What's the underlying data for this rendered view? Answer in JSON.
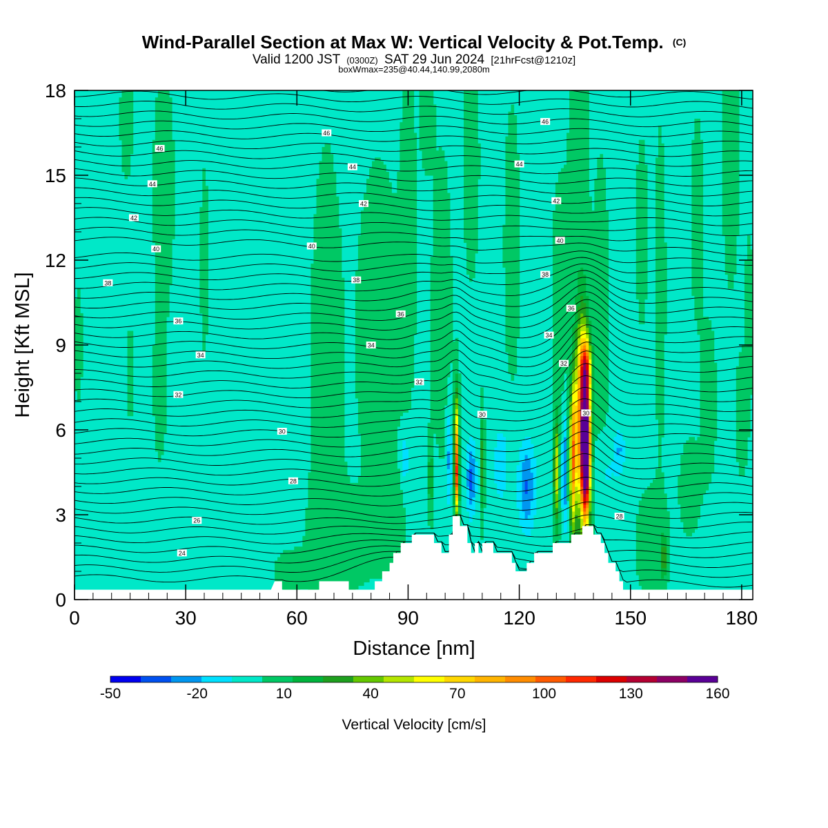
{
  "chart_data": {
    "type": "heatmap",
    "title": "Wind-Parallel Section at Max W: Vertical Velocity & Pot.Temp.",
    "title_mark": "(C)",
    "subtitle_parts": [
      "Valid 1200 JST",
      "(0300Z)",
      "SAT 29 Jun 2024",
      "[21hrFcst@1210z]"
    ],
    "subtitle2": "boxWmax=235@40.44,140.99,2080m",
    "xlabel": "Distance [nm]",
    "ylabel": "Height [Kft MSL]",
    "xlim": [
      0,
      183
    ],
    "ylim": [
      0,
      18
    ],
    "x_ticks": [
      "0",
      "30",
      "60",
      "90",
      "120",
      "150",
      "180"
    ],
    "y_ticks": [
      "0",
      "3",
      "6",
      "9",
      "12",
      "15",
      "18"
    ],
    "colorbar": {
      "label": "Vertical Velocity [cm/s]",
      "tick_labels": [
        "-50",
        "-20",
        "10",
        "40",
        "70",
        "100",
        "130",
        "160"
      ],
      "min": -50,
      "max": 160,
      "colors": [
        "#0000f0",
        "#0050f0",
        "#0096f0",
        "#00e0ff",
        "#00e8c8",
        "#00c864",
        "#00b43c",
        "#1ea01e",
        "#64c800",
        "#b4e600",
        "#ffff00",
        "#ffd700",
        "#ffb400",
        "#ff8c00",
        "#ff5a00",
        "#ff2800",
        "#dc0000",
        "#b40032",
        "#8c0064",
        "#5a0096"
      ]
    },
    "background_value": 0,
    "terrain_kft": [
      [
        0,
        0.35
      ],
      [
        53,
        0.35
      ],
      [
        54,
        0.65
      ],
      [
        56,
        0.65
      ],
      [
        56,
        0.35
      ],
      [
        66,
        0.35
      ],
      [
        66,
        0.65
      ],
      [
        74,
        0.65
      ],
      [
        74,
        0.35
      ],
      [
        81,
        0.35
      ],
      [
        81,
        0.65
      ],
      [
        83,
        0.65
      ],
      [
        83,
        1.0
      ],
      [
        85,
        1.0
      ],
      [
        85,
        1.3
      ],
      [
        86,
        1.3
      ],
      [
        86,
        1.65
      ],
      [
        88,
        1.65
      ],
      [
        88,
        2.0
      ],
      [
        91,
        2.0
      ],
      [
        91,
        2.3
      ],
      [
        97,
        2.3
      ],
      [
        97,
        2.0
      ],
      [
        99,
        2.0
      ],
      [
        99,
        1.65
      ],
      [
        101,
        1.65
      ],
      [
        101,
        2.3
      ],
      [
        102,
        2.3
      ],
      [
        102,
        2.95
      ],
      [
        104,
        2.95
      ],
      [
        104,
        2.6
      ],
      [
        106,
        2.6
      ],
      [
        106,
        2.0
      ],
      [
        107,
        2.0
      ],
      [
        107,
        1.65
      ],
      [
        108,
        1.65
      ],
      [
        108,
        2.0
      ],
      [
        109,
        2.0
      ],
      [
        109,
        1.65
      ],
      [
        110,
        1.65
      ],
      [
        110,
        2.0
      ],
      [
        113,
        2.0
      ],
      [
        113,
        1.65
      ],
      [
        118,
        1.65
      ],
      [
        118,
        1.3
      ],
      [
        119,
        1.3
      ],
      [
        119,
        1.0
      ],
      [
        122,
        1.0
      ],
      [
        122,
        1.3
      ],
      [
        124,
        1.3
      ],
      [
        124,
        1.65
      ],
      [
        129,
        1.65
      ],
      [
        129,
        2.0
      ],
      [
        134,
        2.0
      ],
      [
        134,
        2.3
      ],
      [
        137,
        2.3
      ],
      [
        137,
        2.6
      ],
      [
        140,
        2.6
      ],
      [
        140,
        2.3
      ],
      [
        142,
        2.3
      ],
      [
        142,
        2.0
      ],
      [
        143,
        2.0
      ],
      [
        143,
        1.65
      ],
      [
        144,
        1.65
      ],
      [
        144,
        1.3
      ],
      [
        146,
        1.3
      ],
      [
        146,
        1.0
      ],
      [
        147,
        1.0
      ],
      [
        147,
        0.65
      ],
      [
        148,
        0.65
      ],
      [
        148,
        0.35
      ],
      [
        183,
        0.35
      ]
    ],
    "w_cells": [
      {
        "x": 138,
        "y": 5.2,
        "sx": 0.8,
        "sy": 1.6,
        "w": 150
      },
      {
        "x": 137,
        "y": 6.3,
        "sx": 1.3,
        "sy": 2.4,
        "w": 105
      },
      {
        "x": 134.5,
        "y": 5.0,
        "sx": 0.6,
        "sy": 1.8,
        "w": 85
      },
      {
        "x": 138,
        "y": 8.2,
        "sx": 1.0,
        "sy": 0.7,
        "w": 60
      },
      {
        "x": 130,
        "y": 4.5,
        "sx": 0.5,
        "sy": 1.3,
        "w": 55
      },
      {
        "x": 103,
        "y": 5.4,
        "sx": 0.45,
        "sy": 1.4,
        "w": 75
      },
      {
        "x": 103.2,
        "y": 4.2,
        "sx": 0.4,
        "sy": 0.8,
        "w": 55
      },
      {
        "x": 110,
        "y": 4.8,
        "sx": 0.35,
        "sy": 1.2,
        "w": 32
      },
      {
        "x": 96,
        "y": 4.3,
        "sx": 0.5,
        "sy": 0.9,
        "w": 28
      },
      {
        "x": 159,
        "y": 1.5,
        "sx": 0.45,
        "sy": 0.5,
        "w": 35
      },
      {
        "x": 107,
        "y": 4.3,
        "sx": 0.9,
        "sy": 0.9,
        "w": -32
      },
      {
        "x": 122,
        "y": 4.0,
        "sx": 1.6,
        "sy": 1.1,
        "w": -30
      },
      {
        "x": 132.2,
        "y": 4.6,
        "sx": 0.45,
        "sy": 1.4,
        "w": -30
      },
      {
        "x": 101,
        "y": 5.0,
        "sx": 0.6,
        "sy": 1.3,
        "w": -22
      },
      {
        "x": 89,
        "y": 5.0,
        "sx": 0.6,
        "sy": 0.5,
        "w": -18
      },
      {
        "x": 147,
        "y": 5.3,
        "sx": 0.9,
        "sy": 0.5,
        "w": -18
      },
      {
        "x": 115,
        "y": 4.8,
        "sx": 1.8,
        "sy": 1.3,
        "w": -12
      },
      {
        "x": 93,
        "y": 4.3,
        "sx": 3.5,
        "sy": 1.0,
        "w": -8
      },
      {
        "x": 143,
        "y": 4.5,
        "sx": 3.0,
        "sy": 0.8,
        "w": -10
      },
      {
        "x": 68,
        "y": 7.0,
        "sx": 3.0,
        "sy": 6.0,
        "w": 8
      },
      {
        "x": 82,
        "y": 9.5,
        "sx": 4.0,
        "sy": 4.0,
        "w": 8
      },
      {
        "x": 85,
        "y": 3.2,
        "sx": 3.0,
        "sy": 1.2,
        "w": 9
      },
      {
        "x": 90,
        "y": 13.0,
        "sx": 1.5,
        "sy": 4.0,
        "w": 7
      },
      {
        "x": 95,
        "y": 17.0,
        "sx": 1.2,
        "sy": 1.2,
        "w": 8
      },
      {
        "x": 107,
        "y": 15.5,
        "sx": 1.5,
        "sy": 3.0,
        "w": 7
      },
      {
        "x": 99,
        "y": 9.5,
        "sx": 2.0,
        "sy": 4.5,
        "w": 7
      },
      {
        "x": 118,
        "y": 12.5,
        "sx": 1.5,
        "sy": 3.5,
        "w": 7
      },
      {
        "x": 136,
        "y": 15.0,
        "sx": 1.8,
        "sy": 4.0,
        "w": 8
      },
      {
        "x": 131,
        "y": 10.5,
        "sx": 1.5,
        "sy": 3.0,
        "w": 8
      },
      {
        "x": 142,
        "y": 10.0,
        "sx": 1.5,
        "sy": 4.0,
        "w": 7
      },
      {
        "x": 158,
        "y": 11.0,
        "sx": 1.0,
        "sy": 4.0,
        "w": 7
      },
      {
        "x": 153,
        "y": 13.0,
        "sx": 1.2,
        "sy": 2.5,
        "w": 6
      },
      {
        "x": 168,
        "y": 13.5,
        "sx": 1.2,
        "sy": 2.5,
        "w": 7
      },
      {
        "x": 177,
        "y": 15.5,
        "sx": 1.5,
        "sy": 3.0,
        "w": 8
      },
      {
        "x": 171,
        "y": 7.0,
        "sx": 1.5,
        "sy": 2.0,
        "w": 7
      },
      {
        "x": 180,
        "y": 6.5,
        "sx": 1.2,
        "sy": 1.5,
        "w": 7
      },
      {
        "x": 182,
        "y": 10.0,
        "sx": 0.8,
        "sy": 2.0,
        "w": 7
      },
      {
        "x": 156,
        "y": 2.0,
        "sx": 3.0,
        "sy": 1.3,
        "w": 9
      },
      {
        "x": 166,
        "y": 4.0,
        "sx": 2.0,
        "sy": 1.2,
        "w": 7
      },
      {
        "x": 24,
        "y": 14.5,
        "sx": 2.0,
        "sy": 3.0,
        "w": 7
      },
      {
        "x": 14,
        "y": 17.0,
        "sx": 1.2,
        "sy": 1.5,
        "w": 7
      },
      {
        "x": 23,
        "y": 7.5,
        "sx": 1.2,
        "sy": 1.8,
        "w": 7
      },
      {
        "x": 1,
        "y": 9.0,
        "sx": 0.8,
        "sy": 1.5,
        "w": 6
      },
      {
        "x": 35,
        "y": 12.0,
        "sx": 0.8,
        "sy": 2.5,
        "w": 6
      },
      {
        "x": 15,
        "y": 8.0,
        "sx": 0.8,
        "sy": 1.2,
        "w": 6
      },
      {
        "x": 72,
        "y": 2.0,
        "sx": 6.0,
        "sy": 1.2,
        "w": 7
      },
      {
        "x": 58,
        "y": 1.0,
        "sx": 3.0,
        "sy": 0.5,
        "w": 7
      }
    ],
    "theta_labels": [
      {
        "x": 29,
        "y": 1.65,
        "label": "24"
      },
      {
        "x": 33,
        "y": 2.8,
        "label": "26"
      },
      {
        "x": 59,
        "y": 4.2,
        "label": "28"
      },
      {
        "x": 56,
        "y": 5.95,
        "label": "30"
      },
      {
        "x": 28,
        "y": 7.25,
        "label": "32"
      },
      {
        "x": 34,
        "y": 8.65,
        "label": "34"
      },
      {
        "x": 28,
        "y": 9.85,
        "label": "36"
      },
      {
        "x": 9,
        "y": 11.2,
        "label": "38"
      },
      {
        "x": 22,
        "y": 12.4,
        "label": "40"
      },
      {
        "x": 16,
        "y": 13.5,
        "label": "42"
      },
      {
        "x": 21,
        "y": 14.7,
        "label": "44"
      },
      {
        "x": 23,
        "y": 15.95,
        "label": "46"
      },
      {
        "x": 80,
        "y": 9.0,
        "label": "34"
      },
      {
        "x": 88,
        "y": 10.1,
        "label": "36"
      },
      {
        "x": 76,
        "y": 11.3,
        "label": "38"
      },
      {
        "x": 64,
        "y": 12.5,
        "label": "40"
      },
      {
        "x": 78,
        "y": 14.0,
        "label": "42"
      },
      {
        "x": 75,
        "y": 15.3,
        "label": "44"
      },
      {
        "x": 68,
        "y": 16.5,
        "label": "46"
      },
      {
        "x": 93,
        "y": 7.7,
        "label": "32"
      },
      {
        "x": 110,
        "y": 6.55,
        "label": "30"
      },
      {
        "x": 128,
        "y": 9.35,
        "label": "34"
      },
      {
        "x": 132,
        "y": 8.35,
        "label": "32"
      },
      {
        "x": 127,
        "y": 11.5,
        "label": "38"
      },
      {
        "x": 134,
        "y": 10.3,
        "label": "36"
      },
      {
        "x": 131,
        "y": 12.7,
        "label": "40"
      },
      {
        "x": 130,
        "y": 14.1,
        "label": "42"
      },
      {
        "x": 120,
        "y": 15.4,
        "label": "44"
      },
      {
        "x": 127,
        "y": 16.9,
        "label": "46"
      },
      {
        "x": 138,
        "y": 6.6,
        "label": "30"
      },
      {
        "x": 147,
        "y": 2.95,
        "label": "28"
      }
    ]
  }
}
